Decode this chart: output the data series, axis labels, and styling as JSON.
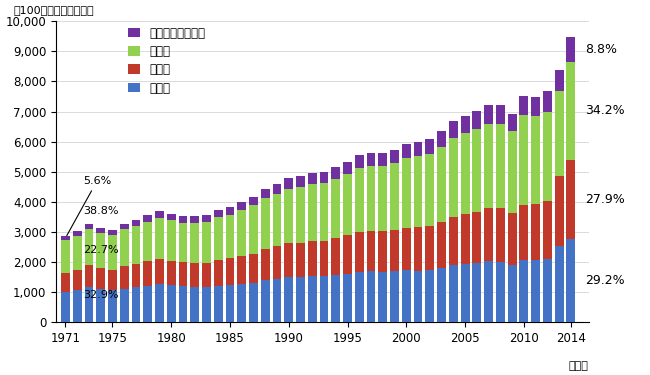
{
  "years": [
    1971,
    1972,
    1973,
    1974,
    1975,
    1976,
    1977,
    1978,
    1979,
    1980,
    1981,
    1982,
    1983,
    1984,
    1985,
    1986,
    1987,
    1988,
    1989,
    1990,
    1991,
    1992,
    1993,
    1994,
    1995,
    1996,
    1997,
    1998,
    1999,
    2000,
    2001,
    2002,
    2003,
    2004,
    2005,
    2006,
    2007,
    2008,
    2009,
    2010,
    2011,
    2012,
    2013,
    2014
  ],
  "industry": [
    1000,
    1060,
    1150,
    1080,
    1050,
    1110,
    1150,
    1200,
    1250,
    1220,
    1180,
    1170,
    1160,
    1210,
    1230,
    1260,
    1300,
    1380,
    1440,
    1490,
    1500,
    1520,
    1520,
    1560,
    1610,
    1670,
    1690,
    1670,
    1690,
    1730,
    1710,
    1730,
    1810,
    1890,
    1940,
    1970,
    2020,
    2000,
    1890,
    2050,
    2050,
    2100,
    2510,
    2760
  ],
  "transport": [
    620,
    670,
    730,
    710,
    690,
    740,
    760,
    810,
    845,
    820,
    800,
    800,
    810,
    850,
    880,
    930,
    970,
    1030,
    1070,
    1120,
    1140,
    1170,
    1180,
    1220,
    1265,
    1310,
    1340,
    1340,
    1370,
    1410,
    1440,
    1470,
    1520,
    1590,
    1640,
    1700,
    1760,
    1790,
    1720,
    1850,
    1860,
    1920,
    2330,
    2640
  ],
  "residential": [
    1090,
    1130,
    1195,
    1155,
    1155,
    1230,
    1265,
    1330,
    1365,
    1340,
    1320,
    1330,
    1355,
    1420,
    1460,
    1520,
    1605,
    1705,
    1760,
    1825,
    1850,
    1890,
    1915,
    1980,
    2045,
    2130,
    2155,
    2165,
    2225,
    2320,
    2355,
    2400,
    2505,
    2630,
    2695,
    2735,
    2815,
    2805,
    2725,
    2970,
    2925,
    2980,
    2850,
    3240
  ],
  "non_energy": [
    160,
    165,
    185,
    175,
    170,
    185,
    200,
    210,
    220,
    215,
    210,
    210,
    220,
    240,
    255,
    265,
    285,
    310,
    330,
    350,
    360,
    370,
    375,
    395,
    415,
    430,
    440,
    440,
    450,
    475,
    485,
    495,
    525,
    560,
    590,
    605,
    635,
    635,
    595,
    660,
    660,
    680,
    700,
    830
  ],
  "colors": {
    "industry": "#4472c4",
    "transport": "#c0392b",
    "residential": "#92d050",
    "non_energy": "#7030a0"
  },
  "legend_labels": [
    "非エネルギー利用",
    "民生用",
    "輸送用",
    "産業用"
  ],
  "ylabel": "（100万石油換算トン）",
  "xlabel": "（年）",
  "ylim": [
    0,
    10000
  ],
  "yticks": [
    0,
    1000,
    2000,
    3000,
    4000,
    5000,
    6000,
    7000,
    8000,
    9000,
    10000
  ],
  "xticks": [
    1971,
    1975,
    1980,
    1985,
    1990,
    1995,
    2000,
    2005,
    2010,
    2014
  ],
  "tick_fontsize": 8.5,
  "background_color": "#ffffff"
}
